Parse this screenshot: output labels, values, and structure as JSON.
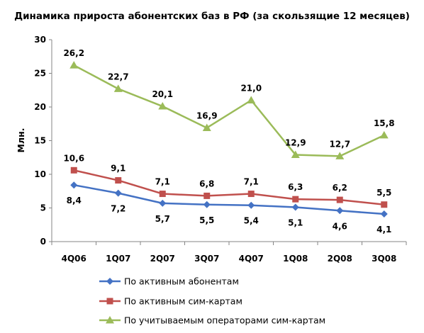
{
  "chart_data": {
    "type": "line",
    "title": "Динамика прироста абонентских баз в РФ (за скользящие 12 месяцев)",
    "ylabel": "Млн.",
    "xlabel": "",
    "ylim": [
      0,
      30
    ],
    "yticks": [
      "0",
      "5",
      "10",
      "15",
      "20",
      "25",
      "30"
    ],
    "grid": false,
    "legend_position": "bottom",
    "categories": [
      "4Q06",
      "1Q07",
      "2Q07",
      "3Q07",
      "4Q07",
      "1Q08",
      "2Q08",
      "3Q08"
    ],
    "series": [
      {
        "name": "По активным абонентам",
        "color": "#4472C4",
        "marker": "diamond",
        "label_position": "below",
        "values": [
          8.4,
          7.2,
          5.7,
          5.5,
          5.4,
          5.1,
          4.6,
          4.1
        ],
        "labels": [
          "8,4",
          "7,2",
          "5,7",
          "5,5",
          "5,4",
          "5,1",
          "4,6",
          "4,1"
        ]
      },
      {
        "name": "По активным сим-картам",
        "color": "#C0504D",
        "marker": "square",
        "label_position": "above",
        "values": [
          10.6,
          9.1,
          7.1,
          6.8,
          7.1,
          6.3,
          6.2,
          5.5
        ],
        "labels": [
          "10,6",
          "9,1",
          "7,1",
          "6,8",
          "7,1",
          "6,3",
          "6,2",
          "5,5"
        ]
      },
      {
        "name": "По учитываемым операторами сим-картам",
        "color": "#9BBB59",
        "marker": "triangle",
        "label_position": "above",
        "values": [
          26.2,
          22.7,
          20.1,
          16.9,
          21.0,
          12.9,
          12.7,
          15.8
        ],
        "labels": [
          "26,2",
          "22,7",
          "20,1",
          "16,9",
          "21,0",
          "12,9",
          "12,7",
          "15,8"
        ]
      }
    ]
  }
}
